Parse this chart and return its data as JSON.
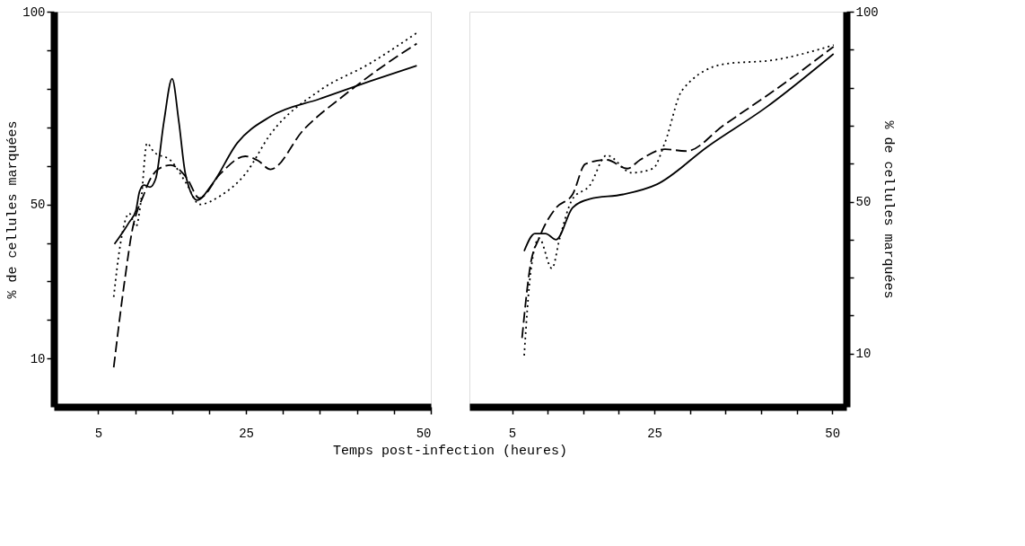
{
  "chart_data": [
    {
      "type": "line",
      "xlabel": "Temps post-infection (heures)",
      "ylabel": "% de cellules marquées",
      "grid": false,
      "legend": false,
      "xlim": [
        -1,
        50
      ],
      "xticks": [
        5,
        {
          "value": 10,
          "label": null
        },
        {
          "value": 15,
          "label": null
        },
        {
          "value": 20,
          "label": null
        },
        25,
        {
          "value": 30,
          "label": null
        },
        {
          "value": 35,
          "label": null
        },
        {
          "value": 40,
          "label": null
        },
        {
          "value": 45,
          "label": null
        },
        50
      ],
      "ylim": [
        -2.5,
        100
      ],
      "yticks": [
        10,
        {
          "value": 20,
          "label": null
        },
        {
          "value": 30,
          "label": null
        },
        {
          "value": 40,
          "label": null
        },
        50,
        {
          "value": 60,
          "label": null
        },
        {
          "value": 70,
          "label": null
        },
        {
          "value": 80,
          "label": null
        },
        {
          "value": 90,
          "label": null
        },
        100
      ],
      "series": [
        {
          "color": "#000000",
          "line_style": "solid",
          "x": [
            7.2,
            9.2,
            10.1,
            10.6,
            11.2,
            12.0,
            12.8,
            13.9,
            15.0,
            15.9,
            16.8,
            18.4,
            20.4,
            23.8,
            28.3,
            35.0,
            41.7,
            48.1
          ],
          "values": [
            39.7,
            45.4,
            48.4,
            53.4,
            55.0,
            54.5,
            56.8,
            71.6,
            82.6,
            71.6,
            57.9,
            51.1,
            55.2,
            65.9,
            72.8,
            77.4,
            81.9,
            86.0
          ]
        },
        {
          "color": "#000000",
          "line_style": "dashed",
          "x": [
            7.1,
            8.6,
            9.7,
            10.3,
            11.1,
            11.7,
            13.1,
            14.8,
            17.0,
            18.7,
            21.5,
            24.9,
            26.6,
            28.3,
            32.8,
            38.4,
            44.0,
            48.1
          ],
          "values": [
            7.7,
            30.5,
            44.2,
            48.4,
            52.2,
            55.2,
            59.1,
            60.2,
            56.8,
            51.6,
            57.9,
            62.5,
            61.4,
            59.1,
            69.4,
            78.5,
            86.5,
            91.7
          ]
        },
        {
          "color": "#000000",
          "line_style": "dotted",
          "x": [
            7.1,
            8.0,
            9.2,
            10.1,
            10.8,
            11.6,
            12.5,
            14.8,
            17.0,
            18.7,
            21.5,
            24.9,
            28.3,
            35.0,
            41.7,
            48.1
          ],
          "values": [
            26.0,
            39.7,
            47.7,
            44.2,
            51.1,
            65.9,
            63.7,
            61.4,
            55.2,
            50.0,
            52.2,
            57.9,
            68.2,
            79.6,
            86.5,
            94.5
          ]
        }
      ]
    },
    {
      "type": "line",
      "ylabel": "% de cellules marquées",
      "grid": false,
      "legend": false,
      "xlim": [
        -1,
        52
      ],
      "xticks": [
        5,
        {
          "value": 10,
          "label": null
        },
        {
          "value": 15,
          "label": null
        },
        {
          "value": 20,
          "label": null
        },
        25,
        {
          "value": 30,
          "label": null
        },
        {
          "value": 35,
          "label": null
        },
        {
          "value": 40,
          "label": null
        },
        {
          "value": 45,
          "label": null
        },
        50
      ],
      "ylim": [
        -4,
        100
      ],
      "yticks": [
        10,
        {
          "value": 20,
          "label": null
        },
        {
          "value": 30,
          "label": null
        },
        {
          "value": 40,
          "label": null
        },
        50,
        {
          "value": 60,
          "label": null
        },
        {
          "value": 70,
          "label": null
        },
        {
          "value": 80,
          "label": null
        },
        {
          "value": 90,
          "label": null
        },
        100
      ],
      "series": [
        {
          "color": "#000000",
          "line_style": "solid",
          "x": [
            6.7,
            8.2,
            9.7,
            11.2,
            13.5,
            15.9,
            20.6,
            25.4,
            32.5,
            40.7,
            50.2
          ],
          "values": [
            37.0,
            41.6,
            41.6,
            40.0,
            48.4,
            50.7,
            51.9,
            54.6,
            64.5,
            74.8,
            88.9
          ]
        },
        {
          "color": "#000000",
          "line_style": "dashed",
          "x": [
            6.4,
            7.6,
            8.8,
            11.2,
            13.5,
            15.3,
            18.3,
            21.2,
            23.0,
            26.5,
            29.5,
            34.8,
            41.9,
            50.2
          ],
          "values": [
            14.1,
            33.6,
            40.4,
            48.4,
            51.9,
            59.9,
            61.0,
            58.7,
            61.0,
            63.8,
            63.3,
            70.2,
            79.3,
            90.8
          ]
        },
        {
          "color": "#000000",
          "line_style": "dotted",
          "x": [
            6.7,
            7.6,
            8.8,
            10.6,
            11.7,
            13.5,
            15.9,
            18.3,
            21.8,
            24.8,
            26.5,
            28.9,
            34.8,
            41.9,
            50.2
          ],
          "values": [
            9.5,
            31.3,
            40.4,
            32.4,
            40.4,
            50.7,
            54.2,
            62.2,
            57.6,
            58.7,
            65.6,
            79.3,
            86.2,
            87.3,
            91.2
          ]
        }
      ]
    }
  ]
}
